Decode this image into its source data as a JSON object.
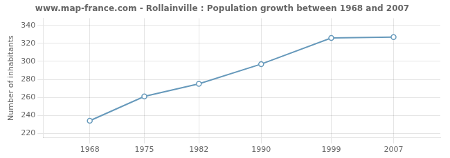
{
  "chart_data": {
    "type": "line",
    "title": "www.map-france.com - Rollainville : Population growth between 1968 and 2007",
    "ylabel": "Number of inhabitants",
    "x": [
      1968,
      1975,
      1982,
      1990,
      1999,
      2007
    ],
    "values": [
      234,
      261,
      275,
      297,
      326,
      327
    ],
    "color": "#6699bb",
    "marker": "circle",
    "xlim": [
      1962,
      2013
    ],
    "xticks": [
      1968,
      1975,
      1982,
      1990,
      1999,
      2007
    ],
    "ylim": [
      215,
      348
    ],
    "yticks": [
      220,
      240,
      260,
      280,
      300,
      320,
      340
    ],
    "grid": true
  }
}
